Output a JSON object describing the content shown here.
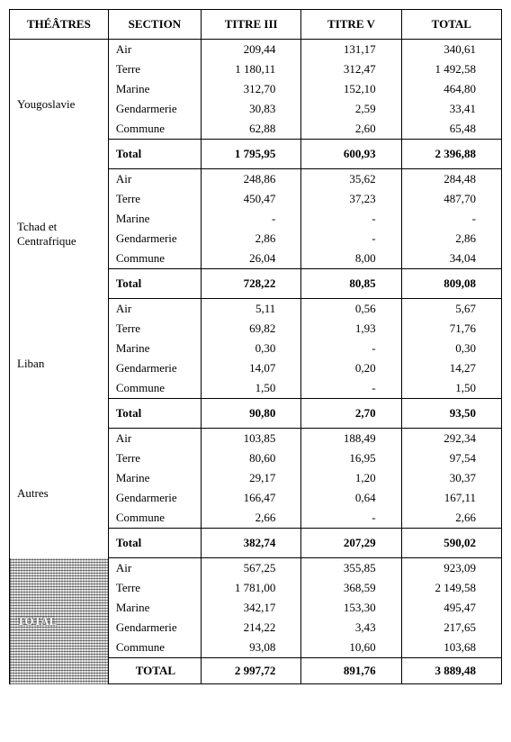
{
  "headers": {
    "theatres": "THÉÂTRES",
    "section": "SECTION",
    "titre3": "TITRE III",
    "titre5": "TITRE V",
    "total": "TOTAL"
  },
  "sectionLabels": {
    "air": "Air",
    "terre": "Terre",
    "marine": "Marine",
    "gend": "Gendarmerie",
    "comm": "Commune",
    "total": "Total"
  },
  "groups": [
    {
      "name": "Yougoslavie",
      "rows": [
        {
          "t3": "209,44",
          "t5": "131,17",
          "tot": "340,61"
        },
        {
          "t3": "1 180,11",
          "t5": "312,47",
          "tot": "1 492,58"
        },
        {
          "t3": "312,70",
          "t5": "152,10",
          "tot": "464,80"
        },
        {
          "t3": "30,83",
          "t5": "2,59",
          "tot": "33,41"
        },
        {
          "t3": "62,88",
          "t5": "2,60",
          "tot": "65,48"
        }
      ],
      "subtotal": {
        "t3": "1 795,95",
        "t5": "600,93",
        "tot": "2 396,88"
      }
    },
    {
      "name": "Tchad et\nCentrafrique",
      "rows": [
        {
          "t3": "248,86",
          "t5": "35,62",
          "tot": "284,48"
        },
        {
          "t3": "450,47",
          "t5": "37,23",
          "tot": "487,70"
        },
        {
          "t3": "-",
          "t5": "-",
          "tot": "-"
        },
        {
          "t3": "2,86",
          "t5": "-",
          "tot": "2,86"
        },
        {
          "t3": "26,04",
          "t5": "8,00",
          "tot": "34,04"
        }
      ],
      "subtotal": {
        "t3": "728,22",
        "t5": "80,85",
        "tot": "809,08"
      }
    },
    {
      "name": "Liban",
      "rows": [
        {
          "t3": "5,11",
          "t5": "0,56",
          "tot": "5,67"
        },
        {
          "t3": "69,82",
          "t5": "1,93",
          "tot": "71,76"
        },
        {
          "t3": "0,30",
          "t5": "-",
          "tot": "0,30"
        },
        {
          "t3": "14,07",
          "t5": "0,20",
          "tot": "14,27"
        },
        {
          "t3": "1,50",
          "t5": "-",
          "tot": "1,50"
        }
      ],
      "subtotal": {
        "t3": "90,80",
        "t5": "2,70",
        "tot": "93,50"
      }
    },
    {
      "name": "Autres",
      "rows": [
        {
          "t3": "103,85",
          "t5": "188,49",
          "tot": "292,34"
        },
        {
          "t3": "80,60",
          "t5": "16,95",
          "tot": "97,54"
        },
        {
          "t3": "29,17",
          "t5": "1,20",
          "tot": "30,37"
        },
        {
          "t3": "166,47",
          "t5": "0,64",
          "tot": "167,11"
        },
        {
          "t3": "2,66",
          "t5": "-",
          "tot": "2,66"
        }
      ],
      "subtotal": {
        "t3": "382,74",
        "t5": "207,29",
        "tot": "590,02"
      }
    }
  ],
  "grand": {
    "label": "TOTAL",
    "rows": [
      {
        "t3": "567,25",
        "t5": "355,85",
        "tot": "923,09"
      },
      {
        "t3": "1 781,00",
        "t5": "368,59",
        "tot": "2 149,58"
      },
      {
        "t3": "342,17",
        "t5": "153,30",
        "tot": "495,47"
      },
      {
        "t3": "214,22",
        "t5": "3,43",
        "tot": "217,65"
      },
      {
        "t3": "93,08",
        "t5": "10,60",
        "tot": "103,68"
      }
    ],
    "final": {
      "label": "TOTAL",
      "t3": "2 997,72",
      "t5": "891,76",
      "tot": "3 889,48"
    }
  }
}
